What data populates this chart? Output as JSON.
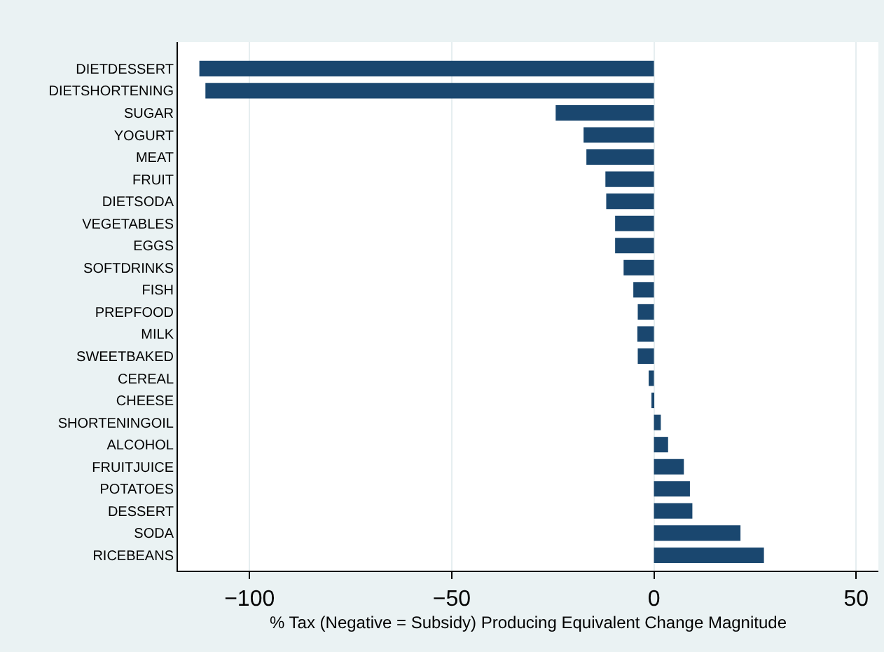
{
  "chart_data": {
    "type": "bar",
    "orientation": "horizontal",
    "categories": [
      "DIETDESSERT",
      "DIETSHORTENING",
      "SUGAR",
      "YOGURT",
      "MEAT",
      "FRUIT",
      "DIETSODA",
      "VEGETABLES",
      "EGGS",
      "SOFTDRINKS",
      "FISH",
      "PREPFOOD",
      "MILK",
      "SWEETBAKED",
      "CEREAL",
      "CHEESE",
      "SHORTENINGOIL",
      "ALCOHOL",
      "FRUITJUICE",
      "POTATOES",
      "DESSERT",
      "SODA",
      "RICEBEANS"
    ],
    "values": [
      -112.4,
      -110.9,
      -24.3,
      -17.4,
      -16.7,
      -12.0,
      -11.8,
      -9.6,
      -9.6,
      -7.5,
      -5.1,
      -4.0,
      -4.1,
      -4.0,
      -1.3,
      -0.3,
      1.7,
      3.5,
      7.4,
      8.9,
      9.5,
      21.4,
      27.2
    ],
    "color": "#1a476f",
    "xlabel": "% Tax (Negative = Subsidy) Producing Equivalent Change Magnitude",
    "xlim": [
      -117.7,
      55.5
    ],
    "xticks": [
      -100,
      -50,
      0,
      50
    ],
    "grid": "x"
  }
}
